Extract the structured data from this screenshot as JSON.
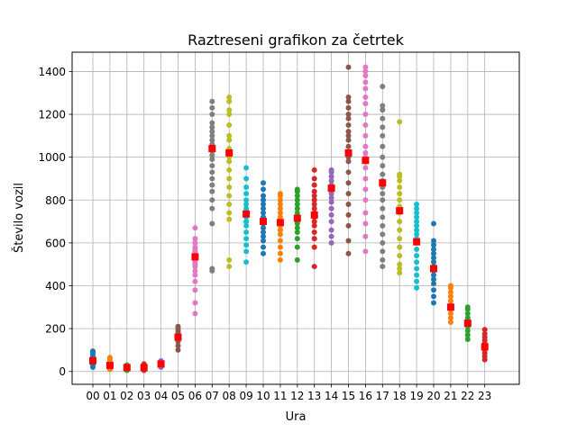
{
  "chart_data": {
    "type": "scatter",
    "title": "Raztreseni grafikon za četrtek",
    "xlabel": "Ura",
    "ylabel": "Število vozil",
    "categories": [
      "00",
      "01",
      "02",
      "03",
      "04",
      "05",
      "06",
      "07",
      "08",
      "09",
      "10",
      "11",
      "12",
      "13",
      "14",
      "15",
      "16",
      "17",
      "18",
      "19",
      "20",
      "21",
      "22",
      "23"
    ],
    "ylim": [
      -60,
      1490
    ],
    "yticks": [
      0,
      200,
      400,
      600,
      800,
      1000,
      1200,
      1400
    ],
    "grid": true,
    "legend": "none",
    "series_colors": [
      "#1f77b4",
      "#ff7f0e",
      "#2ca02c",
      "#d62728",
      "#9467bd",
      "#8c564b",
      "#e377c2",
      "#7f7f7f",
      "#bcbd22",
      "#17becf"
    ],
    "mean_color": "#ff0000",
    "series": [
      {
        "x": "00",
        "values": [
          20,
          30,
          40,
          50,
          55,
          60,
          70,
          80,
          90,
          95
        ],
        "mean": 50
      },
      {
        "x": "01",
        "values": [
          10,
          15,
          20,
          25,
          30,
          40,
          50,
          60,
          65
        ],
        "mean": 28
      },
      {
        "x": "02",
        "values": [
          5,
          10,
          15,
          20,
          25,
          30
        ],
        "mean": 18
      },
      {
        "x": "03",
        "values": [
          5,
          10,
          15,
          20,
          25,
          30,
          35
        ],
        "mean": 18
      },
      {
        "x": "04",
        "values": [
          20,
          25,
          30,
          35,
          40,
          45,
          50
        ],
        "mean": 35
      },
      {
        "x": "05",
        "values": [
          100,
          120,
          140,
          150,
          160,
          170,
          180,
          190,
          200,
          210
        ],
        "mean": 160
      },
      {
        "x": "06",
        "values": [
          270,
          320,
          380,
          420,
          450,
          470,
          490,
          500,
          510,
          520,
          530,
          540,
          550,
          560,
          570,
          580,
          600,
          620,
          670
        ],
        "mean": 535
      },
      {
        "x": "07",
        "values": [
          470,
          480,
          690,
          760,
          800,
          840,
          870,
          900,
          930,
          960,
          990,
          1010,
          1030,
          1050,
          1060,
          1080,
          1100,
          1120,
          1140,
          1160,
          1200,
          1230,
          1260
        ],
        "mean": 1040
      },
      {
        "x": "08",
        "values": [
          490,
          520,
          710,
          740,
          780,
          820,
          860,
          900,
          940,
          980,
          1000,
          1020,
          1040,
          1080,
          1100,
          1150,
          1200,
          1220,
          1260,
          1280
        ],
        "mean": 1020
      },
      {
        "x": "09",
        "values": [
          510,
          560,
          590,
          620,
          650,
          680,
          700,
          720,
          740,
          760,
          780,
          800,
          830,
          860,
          900,
          950
        ],
        "mean": 735
      },
      {
        "x": "10",
        "values": [
          550,
          580,
          610,
          630,
          650,
          670,
          690,
          700,
          720,
          740,
          760,
          780,
          800,
          820,
          850,
          880
        ],
        "mean": 700
      },
      {
        "x": "11",
        "values": [
          520,
          550,
          580,
          610,
          640,
          660,
          680,
          700,
          720,
          740,
          760,
          780,
          800,
          820,
          830
        ],
        "mean": 695
      },
      {
        "x": "12",
        "values": [
          520,
          580,
          620,
          650,
          670,
          690,
          700,
          720,
          740,
          760,
          780,
          800,
          820,
          840,
          850
        ],
        "mean": 715
      },
      {
        "x": "13",
        "values": [
          490,
          580,
          620,
          650,
          680,
          700,
          720,
          740,
          760,
          780,
          800,
          820,
          840,
          870,
          900,
          940
        ],
        "mean": 730
      },
      {
        "x": "14",
        "values": [
          600,
          630,
          660,
          700,
          730,
          760,
          790,
          810,
          830,
          850,
          870,
          890,
          910,
          930,
          940
        ],
        "mean": 855
      },
      {
        "x": "15",
        "values": [
          550,
          610,
          680,
          730,
          780,
          830,
          880,
          930,
          980,
          1000,
          1020,
          1050,
          1080,
          1100,
          1120,
          1150,
          1180,
          1200,
          1230,
          1260,
          1280,
          1420
        ],
        "mean": 1020
      },
      {
        "x": "16",
        "values": [
          560,
          630,
          690,
          740,
          800,
          850,
          900,
          950,
          980,
          1000,
          1020,
          1050,
          1100,
          1150,
          1200,
          1250,
          1280,
          1320,
          1350,
          1380,
          1400,
          1420
        ],
        "mean": 985
      },
      {
        "x": "17",
        "values": [
          490,
          520,
          560,
          600,
          640,
          680,
          720,
          760,
          800,
          830,
          860,
          890,
          920,
          960,
          1000,
          1050,
          1100,
          1140,
          1180,
          1220,
          1240,
          1330
        ],
        "mean": 880
      },
      {
        "x": "18",
        "values": [
          460,
          480,
          500,
          540,
          580,
          620,
          660,
          700,
          740,
          770,
          800,
          830,
          860,
          890,
          910,
          920,
          1165
        ],
        "mean": 750
      },
      {
        "x": "19",
        "values": [
          390,
          420,
          450,
          480,
          510,
          540,
          570,
          600,
          620,
          640,
          660,
          680,
          700,
          720,
          740,
          760,
          780
        ],
        "mean": 605
      },
      {
        "x": "20",
        "values": [
          320,
          350,
          380,
          410,
          430,
          450,
          470,
          490,
          510,
          530,
          550,
          570,
          590,
          610,
          690
        ],
        "mean": 480
      },
      {
        "x": "21",
        "values": [
          230,
          250,
          270,
          290,
          310,
          330,
          350,
          370,
          390,
          400
        ],
        "mean": 300
      },
      {
        "x": "22",
        "values": [
          150,
          170,
          190,
          210,
          230,
          250,
          270,
          290,
          300
        ],
        "mean": 225
      },
      {
        "x": "23",
        "values": [
          55,
          70,
          85,
          100,
          115,
          130,
          145,
          160,
          175,
          195
        ],
        "mean": 115
      }
    ]
  }
}
